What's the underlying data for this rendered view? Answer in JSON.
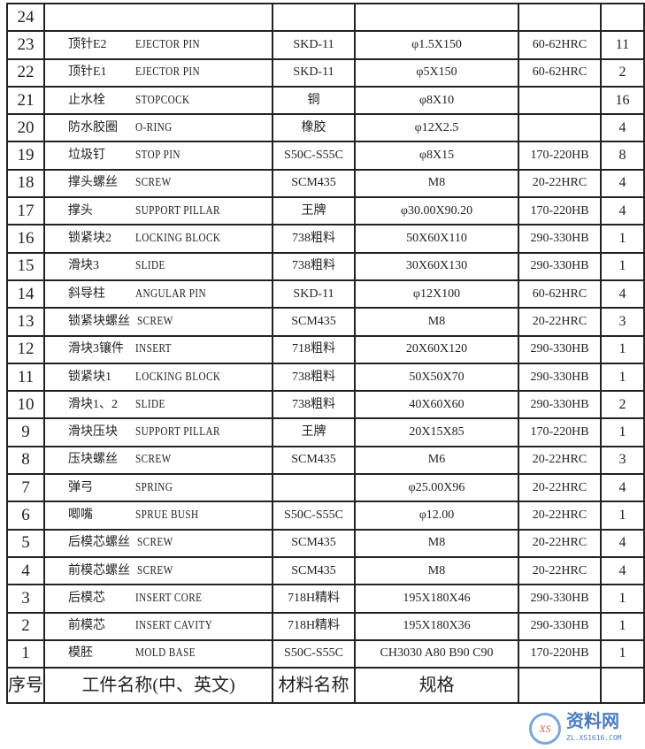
{
  "rows": [
    {
      "no": "24",
      "cn": "",
      "en": "",
      "material": "",
      "spec": "",
      "hardness": "",
      "qty": ""
    },
    {
      "no": "23",
      "cn": "顶针E2",
      "en": "EJECTOR PIN",
      "material": "SKD-11",
      "spec": "φ1.5X150",
      "hardness": "60-62HRC",
      "qty": "11"
    },
    {
      "no": "22",
      "cn": "顶针E1",
      "en": "EJECTOR PIN",
      "material": "SKD-11",
      "spec": "φ5X150",
      "hardness": "60-62HRC",
      "qty": "2"
    },
    {
      "no": "21",
      "cn": "止水栓",
      "en": "STOPCOCK",
      "material": "铜",
      "spec": "φ8X10",
      "hardness": "",
      "qty": "16"
    },
    {
      "no": "20",
      "cn": "防水胶圈",
      "en": "O-RING",
      "material": "橡胶",
      "spec": "φ12X2.5",
      "hardness": "",
      "qty": "4"
    },
    {
      "no": "19",
      "cn": "垃圾钉",
      "en": "STOP PIN",
      "material": "S50C-S55C",
      "spec": "φ8X15",
      "hardness": "170-220HB",
      "qty": "8"
    },
    {
      "no": "18",
      "cn": "撑头螺丝",
      "en": "SCREW",
      "material": "SCM435",
      "spec": "M8",
      "hardness": "20-22HRC",
      "qty": "4"
    },
    {
      "no": "17",
      "cn": "撑头",
      "en": "SUPPORT PILLAR",
      "material": "王牌",
      "spec": "φ30.00X90.20",
      "hardness": "170-220HB",
      "qty": "4"
    },
    {
      "no": "16",
      "cn": "锁紧块2",
      "en": "LOCKING BLOCK",
      "material": "738粗料",
      "spec": "50X60X110",
      "hardness": "290-330HB",
      "qty": "1"
    },
    {
      "no": "15",
      "cn": "滑块3",
      "en": "SLIDE",
      "material": "738粗料",
      "spec": "30X60X130",
      "hardness": "290-330HB",
      "qty": "1"
    },
    {
      "no": "14",
      "cn": "斜导柱",
      "en": "ANGULAR PIN",
      "material": "SKD-11",
      "spec": "φ12X100",
      "hardness": "60-62HRC",
      "qty": "4"
    },
    {
      "no": "13",
      "cn": "锁紧块螺丝",
      "en": "SCREW",
      "material": "SCM435",
      "spec": "M8",
      "hardness": "20-22HRC",
      "qty": "3"
    },
    {
      "no": "12",
      "cn": "滑块3镶件",
      "en": "INSERT",
      "material": "718粗料",
      "spec": "20X60X120",
      "hardness": "290-330HB",
      "qty": "1"
    },
    {
      "no": "11",
      "cn": "锁紧块1",
      "en": "LOCKING BLOCK",
      "material": "738粗料",
      "spec": "50X50X70",
      "hardness": "290-330HB",
      "qty": "1"
    },
    {
      "no": "10",
      "cn": "滑块1、2",
      "en": "SLIDE",
      "material": "738粗料",
      "spec": "40X60X60",
      "hardness": "290-330HB",
      "qty": "2"
    },
    {
      "no": "9",
      "cn": "滑块压块",
      "en": "SUPPORT PILLAR",
      "material": "王牌",
      "spec": "20X15X85",
      "hardness": "170-220HB",
      "qty": "1"
    },
    {
      "no": "8",
      "cn": "压块螺丝",
      "en": "SCREW",
      "material": "SCM435",
      "spec": "M6",
      "hardness": "20-22HRC",
      "qty": "3"
    },
    {
      "no": "7",
      "cn": "弹弓",
      "en": "SPRING",
      "material": "",
      "spec": "φ25.00X96",
      "hardness": "20-22HRC",
      "qty": "4"
    },
    {
      "no": "6",
      "cn": "唧嘴",
      "en": "SPRUE BUSH",
      "material": "S50C-S55C",
      "spec": "φ12.00",
      "hardness": "20-22HRC",
      "qty": "1"
    },
    {
      "no": "5",
      "cn": "后模芯螺丝",
      "en": "SCREW",
      "material": "SCM435",
      "spec": "M8",
      "hardness": "20-22HRC",
      "qty": "4"
    },
    {
      "no": "4",
      "cn": "前模芯螺丝",
      "en": "SCREW",
      "material": "SCM435",
      "spec": "M8",
      "hardness": "20-22HRC",
      "qty": "4"
    },
    {
      "no": "3",
      "cn": "后模芯",
      "en": "INSERT CORE",
      "material": "718H精料",
      "spec": "195X180X46",
      "hardness": "290-330HB",
      "qty": "1"
    },
    {
      "no": "2",
      "cn": "前模芯",
      "en": "INSERT CAVITY",
      "material": "718H精料",
      "spec": "195X180X36",
      "hardness": "290-330HB",
      "qty": "1"
    },
    {
      "no": "1",
      "cn": "模胚",
      "en": "MOLD BASE",
      "material": "S50C-S55C",
      "spec": "CH3030 A80 B90 C90",
      "hardness": "170-220HB",
      "qty": "1"
    }
  ],
  "header": {
    "no": "序号",
    "name": "工件名称(中、英文)",
    "material": "材料名称",
    "spec": "规格"
  },
  "watermark": {
    "cn": "资料网",
    "url": "ZL.XS1616.COM",
    "mark": "XS"
  }
}
